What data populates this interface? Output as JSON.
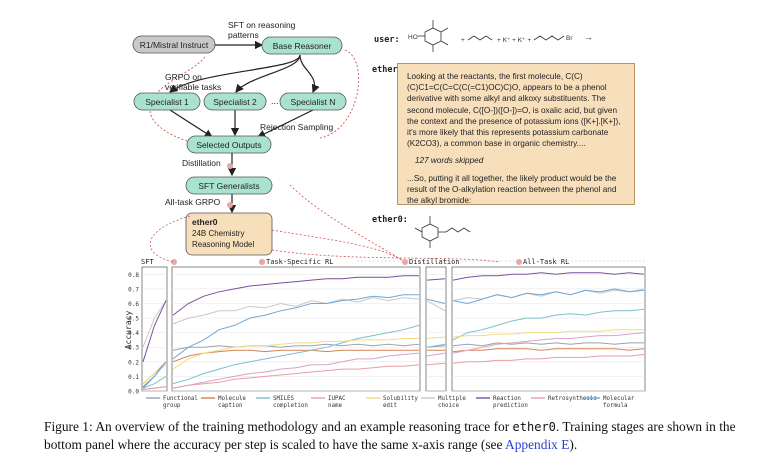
{
  "flow": {
    "start": "R1/Mistral Instruct",
    "sft_label_1": "SFT on reasoning",
    "sft_label_2": "patterns",
    "base": "Base Reasoner",
    "grpo_label_1": "GRPO on",
    "grpo_label_2": "verifiable tasks",
    "spec1": "Specialist 1",
    "spec2": "Specialist 2",
    "ellipsis": "...",
    "specN": "Specialist N",
    "rejection": "Rejection Sampling",
    "selected": "Selected Outputs",
    "distill": "Distillation",
    "sftgen": "SFT Generalists",
    "alltask": "All-task GRPO",
    "model_name": "ether0",
    "model_line1": "24B Chemistry",
    "model_line2": "Reasoning Model"
  },
  "trace": {
    "user_label": "user:",
    "ether_label_1": "ether0:",
    "ether_label_2": "ether0:",
    "para1": "Looking at the reactants, the first molecule, C(C)(C)C1=C(C=C(C(=C1)OC)C)O, appears to be a phenol derivative with some alkyl and alkoxy substituents. The second molecule, C([O-])([O-])=O, is oxalic acid, but given the context and the presence of potassium ions ([K+].[K+]), it's more likely that this represents potassium carbonate (K2CO3), a common base in organic chemistry....",
    "skipped": "127 words skipped",
    "para2": "...So, putting it all together, the likely product would be the result of the O-alkylation reaction between the phenol and the alkyl bromide:",
    "reaction_plus_k": "+ K⁺ + K⁺ +",
    "reaction_br": "Br",
    "reaction_arrow": "→"
  },
  "chart_data": {
    "type": "line",
    "ylabel": "Accuracy",
    "ylim": [
      0,
      0.85
    ],
    "yticks": [
      "0.0",
      "0.1",
      "0.2",
      "0.3",
      "0.4",
      "0.5",
      "0.6",
      "0.7",
      "0.8"
    ],
    "stages": [
      "SFT",
      "Task-Specific RL",
      "Distillation",
      "All-Task RL"
    ],
    "series": [
      {
        "name": "Functional group",
        "color": "#9aa3ad",
        "values": [
          [
            0.05,
            0.12,
            0.2
          ],
          [
            0.28,
            0.3,
            0.3,
            0.31,
            0.3,
            0.31,
            0.31,
            0.3,
            0.31,
            0.31,
            0.32,
            0.31,
            0.32,
            0.31,
            0.32,
            0.31,
            0.32
          ],
          [
            0.3,
            0.31
          ],
          [
            0.31,
            0.32,
            0.31,
            0.33,
            0.32,
            0.33,
            0.32,
            0.33,
            0.32,
            0.33,
            0.33,
            0.32,
            0.33,
            0.33
          ]
        ]
      },
      {
        "name": "Molecule caption",
        "color": "#d9824f",
        "values": [
          [
            0.03,
            0.1,
            0.2
          ],
          [
            0.2,
            0.24,
            0.26,
            0.27,
            0.28,
            0.28,
            0.27,
            0.28,
            0.28,
            0.28,
            0.27,
            0.28,
            0.28,
            0.28,
            0.28,
            0.28,
            0.28
          ],
          [
            0.28,
            0.28
          ],
          [
            0.27,
            0.28,
            0.28,
            0.29,
            0.29,
            0.29,
            0.28,
            0.29,
            0.29,
            0.29,
            0.29,
            0.29,
            0.28,
            0.29
          ]
        ]
      },
      {
        "name": "SMILES completion",
        "color": "#79c2c9",
        "values": [
          [
            0.02,
            0.05,
            0.1
          ],
          [
            0.05,
            0.08,
            0.12,
            0.15,
            0.18,
            0.2,
            0.22,
            0.24,
            0.26,
            0.28,
            0.3,
            0.33,
            0.36,
            0.38,
            0.4,
            0.42,
            0.45
          ],
          [
            0.3,
            0.32
          ],
          [
            0.35,
            0.4,
            0.42,
            0.45,
            0.48,
            0.5,
            0.5,
            0.52,
            0.53,
            0.52,
            0.54,
            0.55,
            0.55,
            0.56
          ]
        ]
      },
      {
        "name": "IUPAC name",
        "color": "#d8a3c9",
        "values": [
          [
            0.01,
            0.02,
            0.03
          ],
          [
            0.02,
            0.04,
            0.06,
            0.08,
            0.1,
            0.12,
            0.13,
            0.15,
            0.16,
            0.18,
            0.18,
            0.2,
            0.22,
            0.22,
            0.24,
            0.25,
            0.26
          ],
          [
            0.24,
            0.26
          ],
          [
            0.26,
            0.28,
            0.3,
            0.32,
            0.33,
            0.34,
            0.35,
            0.36,
            0.36,
            0.37,
            0.38,
            0.38,
            0.39,
            0.4
          ]
        ]
      },
      {
        "name": "Solubility edit",
        "color": "#f1dc84",
        "values": [
          [
            0.05,
            0.12,
            0.18
          ],
          [
            0.15,
            0.22,
            0.26,
            0.28,
            0.3,
            0.31,
            0.31,
            0.32,
            0.33,
            0.33,
            0.34,
            0.34,
            0.35,
            0.35,
            0.35,
            0.36,
            0.36
          ],
          [
            0.36,
            0.37
          ],
          [
            0.37,
            0.38,
            0.38,
            0.39,
            0.39,
            0.4,
            0.4,
            0.4,
            0.41,
            0.41,
            0.41,
            0.42,
            0.42,
            0.42
          ]
        ]
      },
      {
        "name": "Multiple choice",
        "color": "#c8c8c8",
        "values": [
          [
            0.3,
            0.5,
            0.62
          ],
          [
            0.46,
            0.5,
            0.52,
            0.55,
            0.55,
            0.58,
            0.57,
            0.6,
            0.58,
            0.62,
            0.6,
            0.63,
            0.61,
            0.64,
            0.62,
            0.64,
            0.63
          ],
          [
            0.62,
            0.55
          ],
          [
            0.62,
            0.64,
            0.63,
            0.66,
            0.64,
            0.67,
            0.65,
            0.68,
            0.66,
            0.69,
            0.67,
            0.69,
            0.68,
            0.7
          ]
        ]
      },
      {
        "name": "Reaction prediction",
        "color": "#7b4fa0",
        "values": [
          [
            0.2,
            0.45,
            0.62
          ],
          [
            0.52,
            0.6,
            0.65,
            0.68,
            0.7,
            0.72,
            0.73,
            0.74,
            0.75,
            0.76,
            0.77,
            0.77,
            0.78,
            0.78,
            0.78,
            0.79,
            0.79
          ],
          [
            0.76,
            0.77
          ],
          [
            0.76,
            0.78,
            0.79,
            0.79,
            0.8,
            0.8,
            0.81,
            0.8,
            0.81,
            0.81,
            0.81,
            0.8,
            0.81,
            0.8
          ]
        ]
      },
      {
        "name": "Retrosynthesis",
        "color": "#e6a0a4",
        "values": [
          [
            0.01,
            0.02,
            0.03
          ],
          [
            0.02,
            0.04,
            0.05,
            0.06,
            0.08,
            0.09,
            0.1,
            0.11,
            0.12,
            0.13,
            0.14,
            0.15,
            0.15,
            0.16,
            0.17,
            0.17,
            0.18
          ],
          [
            0.18,
            0.19
          ],
          [
            0.19,
            0.2,
            0.2,
            0.21,
            0.21,
            0.22,
            0.22,
            0.23,
            0.23,
            0.23,
            0.24,
            0.24,
            0.24,
            0.25
          ]
        ]
      },
      {
        "name": "Molecular formula",
        "color": "#6fa8d8",
        "values": [
          [
            0.02,
            0.1,
            0.2
          ],
          [
            0.22,
            0.3,
            0.35,
            0.42,
            0.45,
            0.5,
            0.52,
            0.55,
            0.57,
            0.6,
            0.6,
            0.62,
            0.63,
            0.65,
            0.64,
            0.66,
            0.66
          ],
          [
            0.63,
            0.6
          ],
          [
            0.62,
            0.6,
            0.63,
            0.66,
            0.64,
            0.67,
            0.66,
            0.68,
            0.66,
            0.69,
            0.68,
            0.7,
            0.68,
            0.69
          ]
        ]
      }
    ],
    "legend_position": "bottom"
  },
  "caption": {
    "prefix": "Figure 1: An overview of the training methodology and an example reasoning trace for ",
    "model": "ether0",
    "suffix": ". Training stages are shown in the bottom panel where the accuracy per step is scaled to have the same x-axis range (see ",
    "link": "Appendix E",
    "end": ")."
  }
}
